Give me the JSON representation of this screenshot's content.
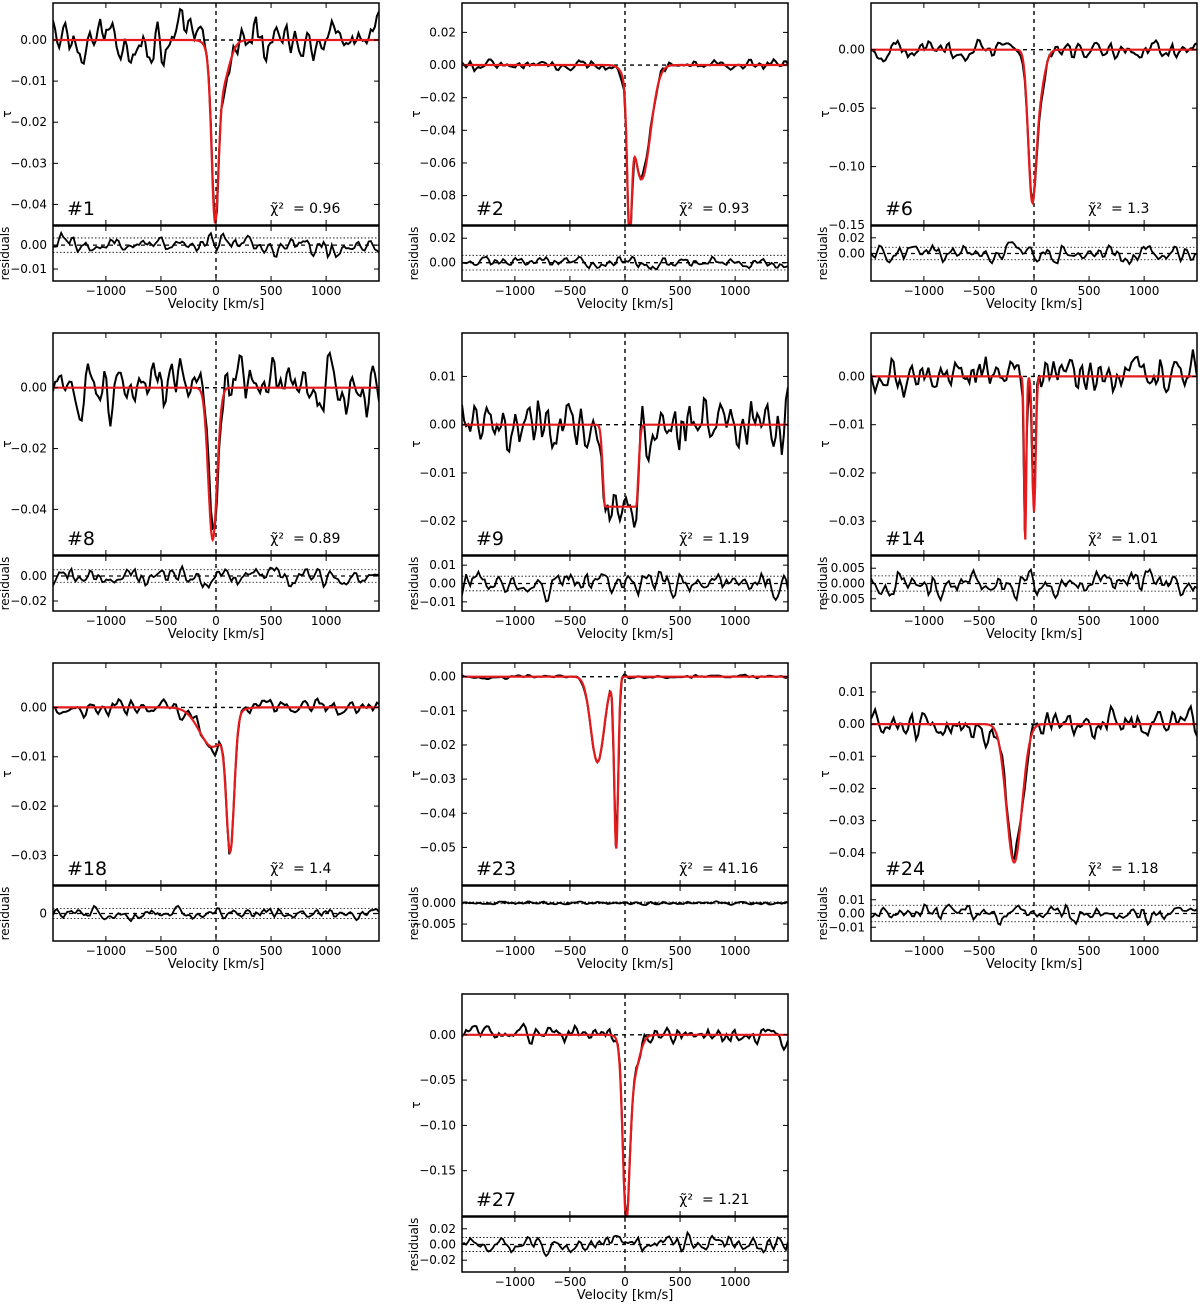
{
  "figure": {
    "x_label": "Velocity [km/s]",
    "y_label_main": "τ",
    "y_label_residual": "residuals",
    "x_range": [
      -1480,
      1480
    ],
    "x_ticks": [
      -1000,
      -500,
      0,
      500,
      1000
    ],
    "chi_symbol": "χ̃²",
    "data_color": "#000000",
    "fit_color": "#e41a1c"
  },
  "chart_data": [
    {
      "type": "line",
      "id": "#1",
      "chi2": "0.96",
      "label": "= 0.96",
      "y_range": [
        -0.045,
        0.009
      ],
      "y_ticks": [
        0.0,
        -0.01,
        -0.02,
        -0.03,
        -0.04
      ],
      "y_tick_labels": [
        "0.00",
        "−0.01",
        "−0.02",
        "−0.03",
        "−0.04"
      ],
      "res_range": [
        -0.015,
        0.008
      ],
      "res_ticks": [
        0.0,
        -0.01
      ],
      "res_tick_labels": [
        "0.00",
        "−0.01"
      ],
      "res_band": 0.003,
      "components": [
        {
          "center": -10,
          "depth": 0.035,
          "sigma": 30
        },
        {
          "center": 40,
          "depth": 0.012,
          "sigma": 70
        }
      ],
      "noise": 0.0042,
      "res_noise": 0.0035
    },
    {
      "type": "line",
      "id": "#2",
      "chi2": "0.93",
      "label": "= 0.93",
      "y_range": [
        -0.098,
        0.038
      ],
      "y_ticks": [
        0.02,
        0.0,
        -0.02,
        -0.04,
        -0.06,
        -0.08
      ],
      "y_tick_labels": [
        "0.02",
        "0.00",
        "−0.02",
        "−0.04",
        "−0.06",
        "−0.08"
      ],
      "res_range": [
        -0.015,
        0.03
      ],
      "res_ticks": [
        0.02,
        0.0
      ],
      "res_tick_labels": [
        "0.02",
        "0.00"
      ],
      "res_band": 0.006,
      "components": [
        {
          "center": 40,
          "depth": 0.08,
          "sigma": 20
        },
        {
          "center": 150,
          "depth": 0.07,
          "sigma": 80
        }
      ],
      "noise": 0.003,
      "res_noise": 0.004
    },
    {
      "type": "line",
      "id": "#6",
      "chi2": "1.3",
      "label": "= 1.3",
      "y_range": [
        -0.15,
        0.04
      ],
      "y_ticks": [
        0.0,
        -0.05,
        -0.1,
        -0.15
      ],
      "y_tick_labels": [
        "0.00",
        "−0.05",
        "−0.10",
        "−0.15"
      ],
      "res_range": [
        -0.035,
        0.035
      ],
      "res_ticks": [
        0.02,
        0.0
      ],
      "res_tick_labels": [
        "0.02",
        "0.00"
      ],
      "res_band": 0.008,
      "components": [
        {
          "center": -20,
          "depth": 0.11,
          "sigma": 35
        },
        {
          "center": 40,
          "depth": 0.04,
          "sigma": 50
        }
      ],
      "noise": 0.007,
      "res_noise": 0.009
    },
    {
      "type": "line",
      "id": "#8",
      "chi2": "0.89",
      "label": "= 0.89",
      "y_range": [
        -0.055,
        0.018
      ],
      "y_ticks": [
        0.0,
        -0.02,
        -0.04
      ],
      "y_tick_labels": [
        "0.00",
        "−0.02",
        "−0.04"
      ],
      "res_range": [
        -0.028,
        0.016
      ],
      "res_ticks": [
        0.0,
        -0.02
      ],
      "res_tick_labels": [
        "0.00",
        "−0.02"
      ],
      "res_band": 0.005,
      "components": [
        {
          "center": -30,
          "depth": 0.05,
          "sigma": 40
        }
      ],
      "noise": 0.007,
      "res_noise": 0.006
    },
    {
      "type": "line",
      "id": "#9",
      "chi2": "1.19",
      "label": "= 1.19",
      "y_range": [
        -0.027,
        0.019
      ],
      "y_ticks": [
        0.01,
        0.0,
        -0.01,
        -0.02
      ],
      "y_tick_labels": [
        "0.01",
        "0.00",
        "−0.01",
        "−0.02"
      ],
      "res_range": [
        -0.015,
        0.015
      ],
      "res_ticks": [
        0.01,
        0.0,
        -0.01
      ],
      "res_tick_labels": [
        "0.01",
        "0.00",
        "−0.01"
      ],
      "res_band": 0.004,
      "components": [
        {
          "center": -40,
          "depth": 0.017,
          "sigma": 70,
          "flat": true
        }
      ],
      "noise": 0.0055,
      "res_noise": 0.0055
    },
    {
      "type": "line",
      "id": "#14",
      "chi2": "1.01",
      "label": "= 1.01",
      "y_range": [
        -0.037,
        0.009
      ],
      "y_ticks": [
        0.0,
        -0.01,
        -0.02,
        -0.03
      ],
      "y_tick_labels": [
        "0.00",
        "−0.01",
        "−0.02",
        "−0.03"
      ],
      "res_range": [
        -0.009,
        0.009
      ],
      "res_ticks": [
        0.005,
        0.0,
        -0.005
      ],
      "res_tick_labels": [
        "0.005",
        "0.000",
        "−0.005"
      ],
      "res_band": 0.0025,
      "components": [
        {
          "center": -80,
          "depth": 0.034,
          "sigma": 10
        },
        {
          "center": 0,
          "depth": 0.028,
          "sigma": 15
        }
      ],
      "noise": 0.0035,
      "res_noise": 0.0035
    },
    {
      "type": "line",
      "id": "#18",
      "chi2": "1.4",
      "label": "= 1.4",
      "y_range": [
        -0.036,
        0.009
      ],
      "y_ticks": [
        0.0,
        -0.01,
        -0.02,
        -0.03
      ],
      "y_tick_labels": [
        "0.00",
        "−0.01",
        "−0.02",
        "−0.03"
      ],
      "res_range": [
        -0.008,
        0.008
      ],
      "res_ticks": [
        0
      ],
      "res_tick_labels": [
        "0"
      ],
      "res_band": 0.0015,
      "components": [
        {
          "center": -30,
          "depth": 0.008,
          "sigma": 120
        },
        {
          "center": 130,
          "depth": 0.026,
          "sigma": 35
        }
      ],
      "noise": 0.0013,
      "res_noise": 0.0013
    },
    {
      "type": "line",
      "id": "#23",
      "chi2": "41.16",
      "label": "= 41.16",
      "y_range": [
        -0.061,
        0.004
      ],
      "y_ticks": [
        0.0,
        -0.01,
        -0.02,
        -0.03,
        -0.04,
        -0.05
      ],
      "y_tick_labels": [
        "0.00",
        "−0.01",
        "−0.02",
        "−0.03",
        "−0.04",
        "−0.05"
      ],
      "res_range": [
        -0.009,
        0.004
      ],
      "res_ticks": [
        0.0,
        -0.005
      ],
      "res_tick_labels": [
        "0.000",
        "−0.005"
      ],
      "res_band": 0.0002,
      "components": [
        {
          "center": -250,
          "depth": 0.025,
          "sigma": 60
        },
        {
          "center": -80,
          "depth": 0.05,
          "sigma": 18
        }
      ],
      "noise": 0.0004,
      "res_noise": 0.0003
    },
    {
      "type": "line",
      "id": "#24",
      "chi2": "1.18",
      "label": "= 1.18",
      "y_range": [
        -0.05,
        0.019
      ],
      "y_ticks": [
        0.01,
        0.0,
        -0.01,
        -0.02,
        -0.03,
        -0.04
      ],
      "y_tick_labels": [
        "0.01",
        "0.00",
        "−0.01",
        "−0.02",
        "−0.03",
        "−0.04"
      ],
      "res_range": [
        -0.02,
        0.02
      ],
      "res_ticks": [
        0.01,
        0.0,
        -0.01
      ],
      "res_tick_labels": [
        "0.01",
        "0.00",
        "−0.01"
      ],
      "res_band": 0.006,
      "components": [
        {
          "center": -180,
          "depth": 0.043,
          "sigma": 70
        }
      ],
      "noise": 0.0045,
      "res_noise": 0.0045
    },
    {
      "type": "line",
      "id": "#27",
      "chi2": "1.21",
      "label": "= 1.21",
      "y_range": [
        -0.2,
        0.045
      ],
      "y_ticks": [
        0.0,
        -0.05,
        -0.1,
        -0.15
      ],
      "y_tick_labels": [
        "0.00",
        "−0.05",
        "−0.10",
        "−0.15"
      ],
      "res_range": [
        -0.035,
        0.035
      ],
      "res_ticks": [
        0.02,
        0.0,
        -0.02
      ],
      "res_tick_labels": [
        "0.02",
        "0.00",
        "−0.02"
      ],
      "res_band": 0.009,
      "components": [
        {
          "center": 10,
          "depth": 0.17,
          "sigma": 30
        },
        {
          "center": 60,
          "depth": 0.05,
          "sigma": 60
        }
      ],
      "noise": 0.008,
      "res_noise": 0.009
    }
  ]
}
